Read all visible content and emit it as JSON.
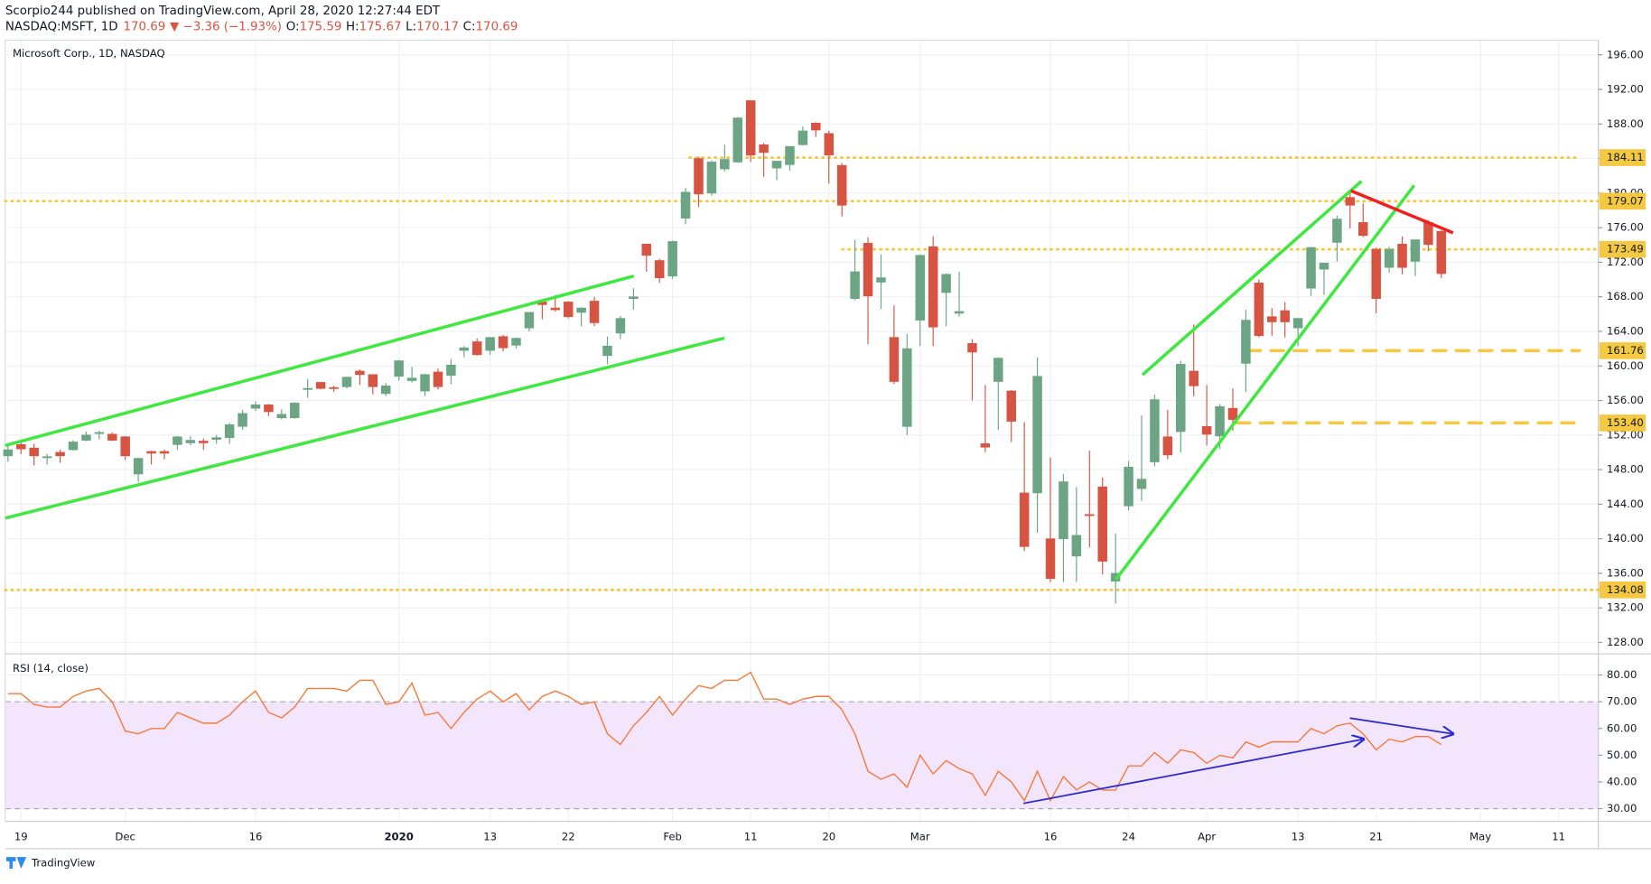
{
  "header": {
    "publisher": "Scorpio244 published on TradingView.com, April 28, 2020 12:27:44 EDT",
    "symbol": "NASDAQ:MSFT, 1D",
    "last": "170.69",
    "change": "▼ −3.36 (−1.93%)",
    "ohlc": [
      {
        "label": "O:",
        "value": "175.59"
      },
      {
        "label": "H:",
        "value": "175.67"
      },
      {
        "label": "L:",
        "value": "170.17"
      },
      {
        "label": "C:",
        "value": "170.69"
      }
    ]
  },
  "footer": "TradingView",
  "chart_data": [
    {
      "type": "candlestick",
      "title": "Microsoft Corp., 1D, NASDAQ",
      "up_color": "#6ba583",
      "down_color": "#d75442",
      "grid": true,
      "categories": [
        null,
        "19",
        null,
        null,
        null,
        null,
        null,
        null,
        null,
        "Dec",
        null,
        null,
        null,
        null,
        null,
        null,
        null,
        null,
        null,
        "16",
        null,
        null,
        null,
        null,
        null,
        null,
        null,
        null,
        null,
        null,
        "2020",
        null,
        null,
        null,
        null,
        null,
        null,
        "13",
        null,
        null,
        null,
        null,
        null,
        "22",
        null,
        null,
        null,
        null,
        null,
        null,
        null,
        "Feb",
        null,
        null,
        null,
        null,
        null,
        "11",
        null,
        null,
        null,
        null,
        null,
        "20",
        null,
        null,
        null,
        null,
        null,
        null,
        "Mar",
        null,
        null,
        null,
        null,
        null,
        null,
        null,
        null,
        null,
        "16",
        null,
        null,
        null,
        null,
        null,
        "24",
        null,
        null,
        null,
        null,
        null,
        "Apr",
        null,
        null,
        null,
        null,
        null,
        null,
        "13",
        null,
        null,
        null,
        null,
        null,
        "21",
        null,
        null,
        null,
        null,
        null,
        null,
        null,
        "May",
        null,
        null,
        null,
        null,
        null,
        "11",
        null,
        null,
        null
      ],
      "open": [
        149.6,
        150.9,
        150.5,
        149.4,
        150.0,
        150.3,
        151.4,
        152.3,
        152.1,
        151.8,
        147.5,
        150.1,
        150.1,
        150.9,
        151.1,
        151.3,
        151.5,
        151.7,
        153.0,
        155.1,
        155.5,
        154.0,
        154.0,
        157.4,
        158.1,
        157.5,
        157.6,
        159.4,
        159.0,
        156.8,
        158.8,
        158.3,
        157.1,
        159.3,
        158.9,
        161.8,
        162.8,
        161.8,
        163.4,
        162.4,
        164.4,
        167.4,
        166.7,
        167.4,
        166.2,
        167.5,
        161.2,
        163.8,
        167.8,
        174.1,
        172.2,
        170.4,
        177.1,
        184.0,
        180.0,
        182.8,
        183.6,
        190.7,
        185.6,
        182.9,
        183.3,
        185.6,
        188.1,
        186.9,
        183.2,
        167.8,
        174.2,
        169.7,
        163.3,
        153.0,
        165.3,
        173.8,
        168.5,
        166.1,
        162.6,
        151.0,
        158.2,
        157.1,
        145.3,
        145.3,
        140.0,
        140.0,
        138.0,
        142.8,
        146.0,
        135.1,
        143.8,
        145.8,
        148.9,
        151.8,
        152.4,
        159.4,
        153.0,
        151.9,
        155.1,
        160.3,
        169.6,
        165.7,
        166.4,
        164.4,
        169.0,
        171.2,
        174.3,
        179.5,
        176.6,
        173.5,
        171.4,
        174.1,
        172.1,
        176.6,
        175.59,
        null,
        null,
        null,
        null,
        null,
        null,
        null,
        null,
        null,
        null,
        null,
        null
      ],
      "high": [
        150.8,
        151.1,
        151.0,
        149.8,
        150.3,
        151.4,
        152.4,
        152.5,
        152.3,
        151.9,
        149.4,
        150.2,
        150.3,
        151.9,
        151.9,
        151.6,
        152.0,
        153.4,
        154.9,
        155.9,
        155.6,
        155.0,
        155.8,
        158.5,
        158.1,
        157.7,
        158.7,
        159.6,
        159.0,
        158.0,
        160.7,
        159.9,
        159.1,
        159.7,
        160.8,
        162.3,
        163.2,
        163.3,
        163.6,
        163.3,
        166.2,
        167.5,
        168.2,
        167.5,
        166.8,
        168.0,
        163.4,
        165.8,
        169.0,
        174.1,
        172.4,
        174.5,
        180.6,
        184.2,
        183.8,
        185.6,
        188.8,
        190.7,
        185.8,
        183.7,
        185.4,
        187.7,
        188.2,
        187.2,
        183.5,
        174.6,
        174.9,
        172.9,
        167.0,
        163.7,
        172.9,
        175.0,
        170.7,
        170.9,
        163.1,
        157.8,
        161.0,
        157.2,
        153.5,
        161.0,
        149.4,
        147.5,
        146.0,
        150.2,
        147.1,
        140.6,
        149.0,
        154.3,
        156.7,
        154.9,
        160.6,
        164.8,
        157.8,
        155.6,
        157.4,
        166.5,
        170.0,
        166.7,
        167.4,
        165.6,
        173.8,
        171.7,
        177.4,
        180.0,
        178.8,
        173.7,
        173.8,
        175.0,
        174.6,
        176.9,
        175.67,
        null,
        null,
        null,
        null,
        null,
        null,
        null,
        null,
        null,
        null,
        null,
        null
      ],
      "low": [
        148.9,
        149.8,
        148.5,
        148.6,
        148.8,
        150.2,
        151.3,
        151.5,
        151.3,
        149.1,
        146.6,
        148.6,
        149.2,
        150.3,
        150.8,
        150.3,
        151.0,
        151.0,
        152.6,
        154.8,
        154.2,
        153.8,
        153.9,
        156.3,
        157.3,
        157.0,
        157.4,
        157.8,
        156.7,
        156.5,
        158.3,
        158.1,
        156.5,
        157.3,
        157.9,
        161.0,
        161.2,
        161.3,
        161.7,
        162.0,
        164.0,
        165.4,
        166.3,
        165.5,
        164.6,
        164.6,
        160.2,
        163.1,
        166.5,
        170.9,
        169.6,
        170.1,
        176.4,
        178.4,
        179.7,
        182.5,
        183.5,
        183.6,
        181.9,
        181.5,
        182.6,
        185.5,
        186.5,
        181.1,
        177.3,
        167.6,
        162.5,
        166.6,
        157.9,
        152.0,
        162.3,
        162.3,
        164.6,
        165.7,
        156.0,
        150.0,
        152.6,
        151.2,
        138.6,
        140.7,
        135.0,
        135.0,
        135.0,
        139.0,
        135.9,
        132.5,
        143.3,
        144.4,
        148.4,
        149.2,
        150.0,
        156.5,
        150.8,
        150.4,
        152.5,
        157.0,
        163.3,
        163.5,
        163.3,
        162.3,
        168.1,
        168.2,
        172.1,
        175.9,
        174.9,
        166.1,
        170.8,
        170.6,
        170.4,
        173.3,
        170.17,
        null,
        null,
        null,
        null,
        null,
        null,
        null,
        null,
        null,
        null,
        null,
        null
      ],
      "close": [
        150.3,
        150.4,
        149.6,
        149.5,
        149.6,
        151.2,
        152.0,
        152.3,
        151.4,
        149.6,
        149.3,
        149.9,
        149.9,
        151.8,
        151.4,
        151.1,
        151.7,
        153.2,
        154.5,
        155.5,
        154.7,
        154.4,
        155.7,
        157.4,
        157.4,
        157.4,
        158.7,
        159.0,
        157.6,
        157.7,
        160.6,
        158.6,
        159.0,
        157.6,
        160.1,
        162.1,
        161.3,
        163.3,
        162.1,
        163.2,
        166.2,
        167.1,
        166.5,
        165.7,
        166.7,
        165.0,
        162.3,
        165.5,
        168.0,
        172.8,
        170.2,
        174.4,
        180.1,
        179.9,
        183.6,
        183.9,
        188.7,
        184.4,
        184.7,
        183.7,
        185.4,
        187.2,
        187.3,
        184.4,
        178.6,
        170.9,
        168.1,
        170.2,
        158.2,
        162.0,
        172.8,
        164.5,
        170.6,
        166.3,
        161.6,
        150.6,
        160.9,
        153.6,
        139.1,
        158.8,
        135.4,
        146.6,
        140.4,
        142.7,
        137.4,
        136.0,
        148.3,
        146.9,
        156.1,
        149.7,
        160.2,
        157.7,
        152.1,
        155.3,
        153.8,
        165.3,
        163.5,
        165.1,
        165.1,
        165.5,
        173.7,
        171.9,
        177.0,
        178.6,
        175.1,
        167.8,
        173.5,
        171.4,
        174.6,
        174.05,
        170.69,
        null,
        null,
        null,
        null,
        null,
        null,
        null,
        null,
        null,
        null,
        null,
        null
      ],
      "ylim": [
        126.8,
        197.7
      ],
      "yticks": [
        {
          "value": 128,
          "label": "128.00"
        },
        {
          "value": 132,
          "label": "132.00"
        },
        {
          "value": 136,
          "label": "136.00"
        },
        {
          "value": 140,
          "label": "140.00"
        },
        {
          "value": 144,
          "label": "144.00"
        },
        {
          "value": 148,
          "label": "148.00"
        },
        {
          "value": 152,
          "label": "152.00"
        },
        {
          "value": 156,
          "label": "156.00"
        },
        {
          "value": 160,
          "label": "160.00"
        },
        {
          "value": 164,
          "label": "164.00"
        },
        {
          "value": 168,
          "label": "168.00"
        },
        {
          "value": 172,
          "label": "172.00"
        },
        {
          "value": 176,
          "label": "176.00"
        },
        {
          "value": 180,
          "label": "180.00"
        },
        {
          "value": 184,
          "label": "184.00"
        },
        {
          "value": 188,
          "label": "188.00"
        },
        {
          "value": 192,
          "label": "192.00"
        },
        {
          "value": 196,
          "label": "196.00"
        }
      ],
      "level_color": "#f5c842",
      "levels": [
        {
          "value": 184.11,
          "label": "184.11",
          "style": "dotted"
        },
        {
          "value": 179.07,
          "label": "179.07",
          "style": "dotted"
        },
        {
          "value": 173.49,
          "label": "173.49",
          "style": "dotted"
        },
        {
          "value": 161.76,
          "label": "161.76",
          "style": "dashed"
        },
        {
          "value": 153.4,
          "label": "153.40",
          "style": "dashed"
        },
        {
          "value": 134.08,
          "label": "134.08",
          "style": "dotted"
        }
      ]
    },
    {
      "type": "line",
      "title": "RSI (14, close)",
      "color": "#f47a3a",
      "band": [
        30,
        70
      ],
      "band_color": "#f3e5fc",
      "values": [
        73,
        73,
        69,
        68,
        68,
        72,
        74,
        75,
        70,
        59,
        58,
        60,
        60,
        66,
        64,
        62,
        62,
        65,
        70,
        74,
        66,
        64,
        68,
        75,
        75,
        75,
        74,
        78,
        78,
        69,
        70,
        77,
        65,
        66,
        60,
        66,
        71,
        74,
        70,
        73,
        67,
        72,
        74,
        72,
        69,
        70,
        58,
        54,
        61,
        66,
        72,
        65,
        71,
        76,
        75,
        78,
        78,
        81,
        71,
        71,
        69,
        71,
        72,
        72,
        67,
        58,
        44,
        41,
        43,
        38,
        50,
        43,
        48,
        45,
        43,
        35,
        44,
        40,
        33,
        44,
        33,
        42,
        37,
        40,
        37,
        37,
        46,
        46,
        51,
        47,
        52,
        51,
        47,
        50,
        49,
        55,
        53,
        55,
        55,
        55,
        60,
        58,
        61,
        62,
        58,
        52,
        56,
        55,
        57,
        57,
        54,
        null,
        null,
        null,
        null,
        null,
        null,
        null,
        null,
        null,
        null,
        null,
        null
      ],
      "ylim": [
        25.3,
        87.5
      ],
      "yticks": [
        {
          "value": 30,
          "label": "30.00"
        },
        {
          "value": 40,
          "label": "40.00"
        },
        {
          "value": 50,
          "label": "50.00"
        },
        {
          "value": 60,
          "label": "60.00"
        },
        {
          "value": 70,
          "label": "70.00"
        },
        {
          "value": 80,
          "label": "80.00"
        }
      ]
    }
  ]
}
